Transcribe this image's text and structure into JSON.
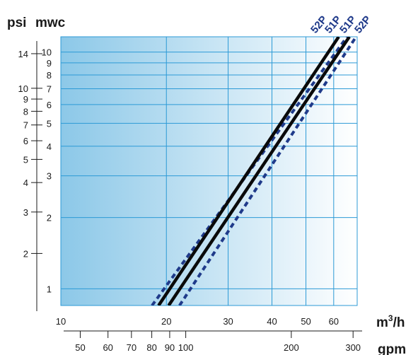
{
  "chart_data": {
    "type": "line",
    "scale": "log-log",
    "grid": true,
    "units": {
      "left_outer": "psi",
      "left_inner": "mwc",
      "bottom_inner": "m3/h",
      "bottom_inner_base": "m",
      "bottom_inner_sup": "3",
      "bottom_inner_tail": "/h",
      "bottom_outer": "gpm"
    },
    "mwc_axis": {
      "ylim": [
        0.85,
        11.6
      ],
      "ticks": [
        1,
        2,
        3,
        4,
        5,
        6,
        7,
        8,
        9,
        10
      ],
      "tick_labels": [
        "1",
        "2",
        "3",
        "4",
        "5",
        "6",
        "7",
        "8",
        "9",
        "10"
      ]
    },
    "psi_axis": {
      "ticks": [
        2,
        3,
        4,
        5,
        6,
        7,
        8,
        9,
        10,
        14
      ],
      "tick_labels": [
        "2",
        "3",
        "4",
        "5",
        "6",
        "7",
        "8",
        "9",
        "10",
        "14"
      ],
      "mwc_equivalent": [
        1.41,
        2.11,
        2.81,
        3.52,
        4.22,
        4.92,
        5.62,
        6.33,
        7.03,
        9.84
      ]
    },
    "m3h_axis": {
      "xlim": [
        10,
        70
      ],
      "ticks": [
        10,
        20,
        30,
        40,
        50,
        60
      ],
      "tick_labels": [
        "10",
        "20",
        "30",
        "40",
        "50",
        "60"
      ]
    },
    "gpm_axis": {
      "ticks": [
        50,
        60,
        70,
        80,
        90,
        100,
        200,
        300
      ],
      "tick_labels": [
        "50",
        "60",
        "70",
        "80",
        "90",
        "100",
        "200",
        "300"
      ],
      "m3h_equivalent": [
        11.36,
        13.63,
        15.9,
        18.17,
        20.44,
        22.71,
        45.42,
        68.14
      ]
    },
    "series": [
      {
        "name": "52P",
        "style": "dashed",
        "points": [
          [
            18.2,
            0.85
          ],
          [
            65.5,
            11.6
          ]
        ]
      },
      {
        "name": "51P",
        "style": "solid",
        "points": [
          [
            19.0,
            0.85
          ],
          [
            62.0,
            11.6
          ]
        ]
      },
      {
        "name": "52P",
        "style": "dashed",
        "points": [
          [
            21.8,
            0.85
          ],
          [
            69.5,
            11.6
          ]
        ]
      },
      {
        "name": "51P",
        "style": "solid",
        "points": [
          [
            20.3,
            0.85
          ],
          [
            66.5,
            11.6
          ]
        ]
      }
    ],
    "colors": {
      "gradient_left": "#8cc8e8",
      "gradient_right": "#ffffff",
      "grid": "#2c9ad6",
      "curve_solid": "#0a0a0a",
      "curve_dashed": "#1f3a8a",
      "axis": "#1a1a1a"
    }
  }
}
